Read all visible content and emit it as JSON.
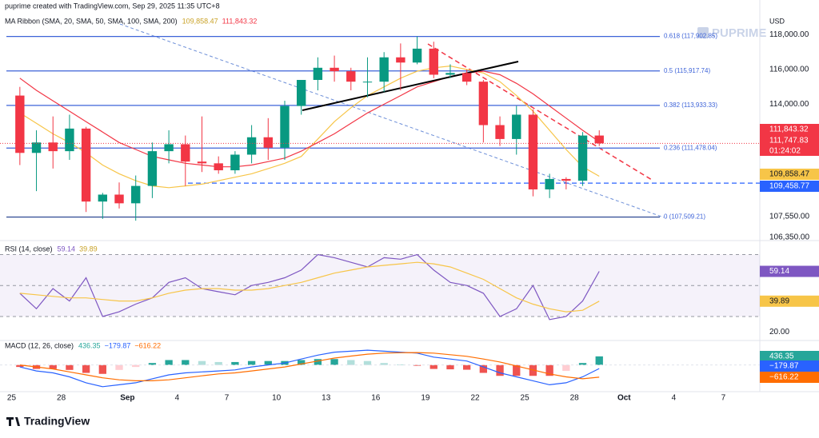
{
  "header": {
    "created": "puprime created with TradingView.com, Sep 29, 2025 11:35 UTC+8",
    "currency": "USD",
    "logo": "PUPRIME",
    "footer": "TradingView"
  },
  "chart_data": [
    {
      "type": "candlestick",
      "title": "MA Ribbon (SMA, 20, SMA, 50, SMA, 100, SMA, 200)",
      "x": [
        0,
        1,
        2,
        3,
        4,
        5,
        6,
        7,
        8,
        9,
        10,
        11,
        12,
        13,
        14,
        15,
        16,
        17,
        18,
        19,
        20,
        21,
        22,
        23,
        24,
        25,
        26,
        27,
        28,
        29,
        30,
        31,
        32,
        33,
        34,
        35
      ],
      "open": [
        114500,
        111200,
        111800,
        111300,
        112600,
        108400,
        108800,
        108300,
        109300,
        111300,
        111700,
        110700,
        110600,
        110200,
        111100,
        112100,
        111500,
        113900,
        115400,
        116100,
        115900,
        115300,
        115300,
        116700,
        116400,
        117200,
        115700,
        115800,
        115300,
        112800,
        112000,
        113400,
        109100,
        109700,
        109600,
        112200
      ],
      "high": [
        115000,
        112500,
        113300,
        113400,
        112700,
        108900,
        109500,
        109900,
        111800,
        112500,
        112200,
        113300,
        111000,
        111300,
        112800,
        113200,
        114200,
        115300,
        116700,
        116800,
        116100,
        116700,
        117000,
        117500,
        117900,
        117600,
        116300,
        116000,
        115400,
        113300,
        113900,
        113700,
        110000,
        109800,
        112400,
        112500
      ],
      "low": [
        110500,
        109000,
        110300,
        110800,
        107800,
        107400,
        108000,
        107300,
        108600,
        110600,
        109300,
        110100,
        110000,
        110000,
        110600,
        110800,
        110800,
        113400,
        114800,
        115300,
        114800,
        114400,
        114700,
        114800,
        116300,
        115500,
        115500,
        115100,
        111800,
        111600,
        111100,
        108700,
        108600,
        109100,
        109300,
        111600
      ],
      "close": [
        111200,
        111800,
        111300,
        112600,
        108400,
        108800,
        108300,
        109300,
        111300,
        111700,
        110700,
        110600,
        110200,
        111100,
        112100,
        111500,
        113900,
        115400,
        116100,
        115900,
        115300,
        115300,
        116700,
        116400,
        117200,
        115700,
        115800,
        115300,
        112800,
        112000,
        113400,
        109100,
        109700,
        109600,
        112200,
        111747.83
      ],
      "close_label": "111,747.83",
      "countdown": "01:24:02",
      "up_color": "#089981",
      "down_color": "#f23645",
      "series": [
        {
          "color": "#f7c548",
          "value_label": "109,858.47",
          "values": [
            113500,
            112900,
            112300,
            111800,
            111200,
            110500,
            110000,
            109600,
            109300,
            109200,
            109300,
            109400,
            109600,
            109800,
            110000,
            110300,
            110600,
            111000,
            112000,
            113000,
            113800,
            114500,
            115000,
            115500,
            115900,
            116100,
            116200,
            116000,
            115800,
            115300,
            114500,
            113600,
            112500,
            111400,
            110400,
            109858.47
          ]
        },
        {
          "color": "#f23645",
          "value_label": "111,843.32",
          "values": [
            115500,
            114800,
            114200,
            113600,
            113000,
            112400,
            111800,
            111400,
            111000,
            110800,
            110600,
            110500,
            110400,
            110400,
            110500,
            110700,
            110900,
            111300,
            111800,
            112300,
            112900,
            113500,
            114000,
            114500,
            115000,
            115300,
            115600,
            115800,
            115900,
            115700,
            115200,
            114600,
            113900,
            113200,
            112500,
            111843.32
          ]
        }
      ],
      "fib_levels": [
        {
          "value": 117902.85,
          "label": "0.618 (117,902.85)"
        },
        {
          "value": 115917.74,
          "label": "0.5 (115,917.74)"
        },
        {
          "value": 113933.33,
          "label": "0.382 (113,933.33)"
        },
        {
          "value": 111478.04,
          "label": "0.236 (111,478.04)"
        },
        {
          "value": 107509.21,
          "label": "0 (107,509.21)"
        }
      ],
      "levels": [
        {
          "value": 109458.77,
          "label": "109,458.77",
          "color": "#2962ff"
        }
      ],
      "xlim": [
        -0.7,
        45.2
      ],
      "ylim": [
        106200,
        120000
      ],
      "yticks": [
        {
          "value": 118000,
          "label": "118,000.00"
        },
        {
          "value": 116000,
          "label": "116,000.00"
        },
        {
          "value": 114000,
          "label": "114,000.00"
        },
        {
          "value": 107550,
          "label": "107,550.00"
        },
        {
          "value": 106350,
          "label": "106,350.00"
        }
      ],
      "xticks": [
        {
          "value": 0,
          "label": "25"
        },
        {
          "value": 3,
          "label": "28"
        },
        {
          "value": 7,
          "label": "Sep"
        },
        {
          "value": 10,
          "label": "4"
        },
        {
          "value": 13,
          "label": "7"
        },
        {
          "value": 16,
          "label": "10"
        },
        {
          "value": 19,
          "label": "13"
        },
        {
          "value": 22,
          "label": "16"
        },
        {
          "value": 25,
          "label": "19"
        },
        {
          "value": 28,
          "label": "22"
        },
        {
          "value": 31,
          "label": "25"
        },
        {
          "value": 34,
          "label": "28"
        },
        {
          "value": 37,
          "label": "Oct"
        },
        {
          "value": 40,
          "label": "4"
        },
        {
          "value": 43,
          "label": "7"
        }
      ]
    },
    {
      "type": "line",
      "title": "RSI (14, close)",
      "ylim": [
        15,
        78
      ],
      "yticks": [
        {
          "value": 20,
          "label": "20.00"
        }
      ],
      "bands": [
        70,
        50,
        30
      ],
      "series": [
        {
          "color": "#7e57c2",
          "value_label": "59.14",
          "values": [
            45,
            35,
            48,
            40,
            55,
            30,
            33,
            38,
            42,
            52,
            55,
            48,
            46,
            44,
            50,
            52,
            55,
            60,
            70,
            68,
            65,
            62,
            68,
            67,
            70,
            60,
            52,
            50,
            45,
            30,
            35,
            50,
            28,
            30,
            40,
            59.14
          ]
        },
        {
          "color": "#f7c548",
          "value_label": "39.89",
          "values": [
            45,
            44,
            43,
            42,
            42,
            41,
            40,
            40,
            42,
            45,
            47,
            48,
            48,
            47,
            47,
            48,
            50,
            52,
            55,
            58,
            60,
            62,
            63,
            64,
            65,
            64,
            62,
            58,
            54,
            48,
            42,
            38,
            35,
            33,
            34,
            39.89
          ]
        }
      ]
    },
    {
      "type": "macd",
      "title": "MACD (12, 26, close)",
      "ylim": [
        -1350,
        1200
      ],
      "histogram": {
        "value_label": "436.35",
        "colors": [
          "#26a69a",
          "#b2dfdb",
          "#ef5350",
          "#ffcdd2"
        ],
        "values": [
          -100,
          -200,
          -200,
          -250,
          -400,
          -450,
          -250,
          -100,
          100,
          250,
          250,
          200,
          150,
          150,
          200,
          200,
          200,
          250,
          300,
          300,
          250,
          200,
          100,
          30,
          -30,
          -200,
          -220,
          -240,
          -400,
          -550,
          -550,
          -550,
          -550,
          -300,
          100,
          436.35
        ]
      },
      "series": [
        {
          "color": "#2962ff",
          "value_label": "−179.87",
          "values": [
            -100,
            -300,
            -400,
            -600,
            -900,
            -1100,
            -1000,
            -900,
            -700,
            -500,
            -400,
            -350,
            -300,
            -250,
            -100,
            0,
            100,
            300,
            500,
            650,
            700,
            750,
            700,
            650,
            600,
            400,
            300,
            200,
            -100,
            -400,
            -600,
            -800,
            -1000,
            -900,
            -600,
            -179.87
          ]
        },
        {
          "color": "#ff6d00",
          "value_label": "−616.22",
          "values": [
            0,
            -100,
            -200,
            -350,
            -500,
            -650,
            -750,
            -800,
            -800,
            -750,
            -650,
            -550,
            -450,
            -400,
            -300,
            -200,
            -100,
            50,
            200,
            350,
            450,
            550,
            600,
            620,
            630,
            600,
            520,
            440,
            300,
            150,
            -50,
            -250,
            -450,
            -600,
            -700,
            -616.22
          ]
        }
      ]
    }
  ]
}
